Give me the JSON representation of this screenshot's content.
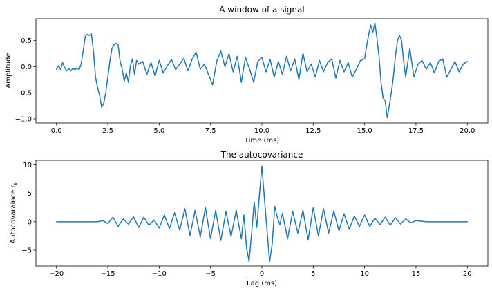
{
  "chart_data": [
    {
      "type": "line",
      "title": "A window of a signal",
      "xlabel": "Time (ms)",
      "ylabel": "Amplitude",
      "xlim": [
        -1.0,
        21.0
      ],
      "ylim": [
        -1.08,
        0.92
      ],
      "xticks": [
        0,
        2.5,
        5,
        7.5,
        10,
        12.5,
        15,
        17.5,
        20
      ],
      "xtick_labels": [
        "0.0",
        "2.5",
        "5.0",
        "7.5",
        "10.0",
        "12.5",
        "15.0",
        "17.5",
        "20.0"
      ],
      "yticks": [
        -1.0,
        -0.5,
        0.0,
        0.5
      ],
      "ytick_labels": [
        "−1.0",
        "−0.5",
        "0.0",
        "0.5"
      ],
      "grid": false,
      "color": "#1f77b4",
      "series": [
        {
          "x": [
            0.0,
            0.1,
            0.2,
            0.3,
            0.4,
            0.5,
            0.6,
            0.7,
            0.8,
            0.9,
            1.0,
            1.1,
            1.2,
            1.3,
            1.4,
            1.5,
            1.6,
            1.7,
            1.8,
            1.9,
            2.0,
            2.1,
            2.2,
            2.3,
            2.4,
            2.5,
            2.6,
            2.7,
            2.8,
            2.9,
            3.0,
            3.1,
            3.2,
            3.3,
            3.4,
            3.5,
            3.6,
            3.7,
            3.8,
            3.9,
            4.0,
            4.2,
            4.4,
            4.6,
            4.8,
            5.0,
            5.2,
            5.4,
            5.6,
            5.8,
            6.0,
            6.2,
            6.4,
            6.6,
            6.8,
            7.0,
            7.2,
            7.4,
            7.6,
            7.8,
            8.0,
            8.2,
            8.4,
            8.6,
            8.8,
            9.0,
            9.2,
            9.4,
            9.6,
            9.8,
            10.0,
            10.2,
            10.4,
            10.6,
            10.8,
            11.0,
            11.2,
            11.4,
            11.6,
            11.8,
            12.0,
            12.2,
            12.4,
            12.6,
            12.8,
            13.0,
            13.2,
            13.4,
            13.6,
            13.8,
            14.0,
            14.2,
            14.4,
            14.6,
            14.8,
            15.0,
            15.1,
            15.2,
            15.3,
            15.4,
            15.5,
            15.6,
            15.7,
            15.8,
            15.9,
            16.0,
            16.1,
            16.2,
            16.3,
            16.4,
            16.5,
            16.6,
            16.7,
            16.8,
            16.9,
            17.0,
            17.2,
            17.4,
            17.6,
            17.8,
            18.0,
            18.2,
            18.4,
            18.6,
            18.8,
            19.0,
            19.2,
            19.4,
            19.6,
            19.8,
            20.0
          ],
          "y": [
            -0.05,
            0.02,
            -0.06,
            0.08,
            -0.02,
            -0.08,
            -0.04,
            -0.08,
            -0.03,
            -0.06,
            -0.02,
            -0.06,
            0.05,
            0.3,
            0.58,
            0.62,
            0.6,
            0.63,
            0.3,
            -0.2,
            -0.4,
            -0.55,
            -0.78,
            -0.7,
            -0.5,
            -0.2,
            0.1,
            0.35,
            0.42,
            0.45,
            0.42,
            0.1,
            -0.05,
            -0.28,
            -0.12,
            -0.3,
            0.02,
            0.15,
            -0.15,
            0.12,
            0.05,
            0.1,
            -0.15,
            0.08,
            -0.18,
            0.12,
            -0.12,
            0.02,
            0.14,
            -0.06,
            0.05,
            0.16,
            -0.08,
            0.14,
            0.28,
            -0.05,
            0.05,
            -0.15,
            -0.35,
            0.1,
            0.3,
            0.0,
            0.25,
            -0.1,
            0.2,
            -0.3,
            0.18,
            -0.05,
            -0.3,
            0.1,
            0.18,
            -0.1,
            0.14,
            -0.2,
            0.1,
            -0.15,
            0.2,
            -0.08,
            0.15,
            -0.25,
            0.26,
            -0.1,
            0.05,
            -0.2,
            0.12,
            -0.1,
            0.08,
            0.15,
            -0.22,
            0.12,
            -0.1,
            0.08,
            -0.2,
            -0.05,
            0.12,
            0.15,
            0.4,
            0.62,
            0.8,
            0.65,
            0.84,
            0.55,
            0.2,
            -0.3,
            -0.6,
            -0.65,
            -0.98,
            -0.75,
            -0.5,
            -0.2,
            0.2,
            0.5,
            0.6,
            0.5,
            0.1,
            -0.2,
            0.35,
            -0.2,
            0.05,
            0.12,
            -0.05,
            0.08,
            -0.12,
            0.1,
            0.15,
            -0.2,
            -0.05,
            0.1,
            -0.1,
            0.05,
            0.1
          ]
        }
      ]
    },
    {
      "type": "line",
      "title": "The autocovariance",
      "xlabel": "Lag (ms)",
      "ylabel": "Autocovaraince r",
      "ylabel_subscript": "k",
      "xlim": [
        -22.0,
        22.0
      ],
      "ylim": [
        -7.8,
        10.8
      ],
      "xticks": [
        -20,
        -15,
        -10,
        -5,
        0,
        5,
        10,
        15,
        20
      ],
      "xtick_labels": [
        "−20",
        "−15",
        "−10",
        "−5",
        "0",
        "5",
        "10",
        "15",
        "20"
      ],
      "yticks": [
        -5,
        0,
        5,
        10
      ],
      "ytick_labels": [
        "−5",
        "0",
        "5",
        "10"
      ],
      "grid": false,
      "color": "#1f77b4",
      "series": [
        {
          "x": [
            -20.0,
            -17.0,
            -16.0,
            -15.5,
            -15.0,
            -14.5,
            -14.0,
            -13.5,
            -13.0,
            -12.5,
            -12.0,
            -11.5,
            -11.0,
            -10.5,
            -10.0,
            -9.5,
            -9.0,
            -8.5,
            -8.0,
            -7.5,
            -7.0,
            -6.5,
            -6.0,
            -5.5,
            -5.0,
            -4.5,
            -4.0,
            -3.5,
            -3.0,
            -2.5,
            -2.0,
            -1.75,
            -1.5,
            -1.25,
            -1.0,
            -0.75,
            -0.5,
            -0.25,
            0.0,
            0.25,
            0.5,
            0.75,
            1.0,
            1.25,
            1.5,
            1.75,
            2.0,
            2.5,
            3.0,
            3.5,
            4.0,
            4.5,
            5.0,
            5.5,
            6.0,
            6.5,
            7.0,
            7.5,
            8.0,
            8.5,
            9.0,
            9.5,
            10.0,
            10.5,
            11.0,
            11.5,
            12.0,
            12.5,
            13.0,
            13.5,
            14.0,
            14.5,
            15.0,
            15.5,
            16.0,
            17.0,
            20.0
          ],
          "y": [
            0.0,
            0.0,
            0.0,
            0.2,
            -0.3,
            0.8,
            -0.8,
            0.5,
            -0.4,
            0.9,
            -1.0,
            0.8,
            -0.6,
            0.3,
            -1.1,
            1.2,
            -1.2,
            1.6,
            -1.5,
            2.3,
            -2.4,
            2.0,
            -2.7,
            2.5,
            -3.0,
            2.0,
            -3.3,
            1.8,
            -2.6,
            2.0,
            -3.0,
            1.2,
            -4.5,
            -7.0,
            -2.0,
            3.5,
            -1.0,
            4.5,
            9.8,
            4.0,
            -1.5,
            -7.0,
            -4.0,
            2.7,
            0.8,
            -0.5,
            1.5,
            -3.0,
            1.8,
            -2.0,
            2.0,
            -3.2,
            2.5,
            -2.5,
            2.3,
            -2.0,
            1.9,
            -1.6,
            1.4,
            -1.3,
            1.0,
            -0.8,
            1.2,
            -0.8,
            0.6,
            -0.5,
            0.8,
            -0.6,
            0.7,
            -0.4,
            0.5,
            -0.2,
            0.2,
            0.1,
            0.0,
            0.0,
            0.0
          ]
        }
      ]
    }
  ]
}
